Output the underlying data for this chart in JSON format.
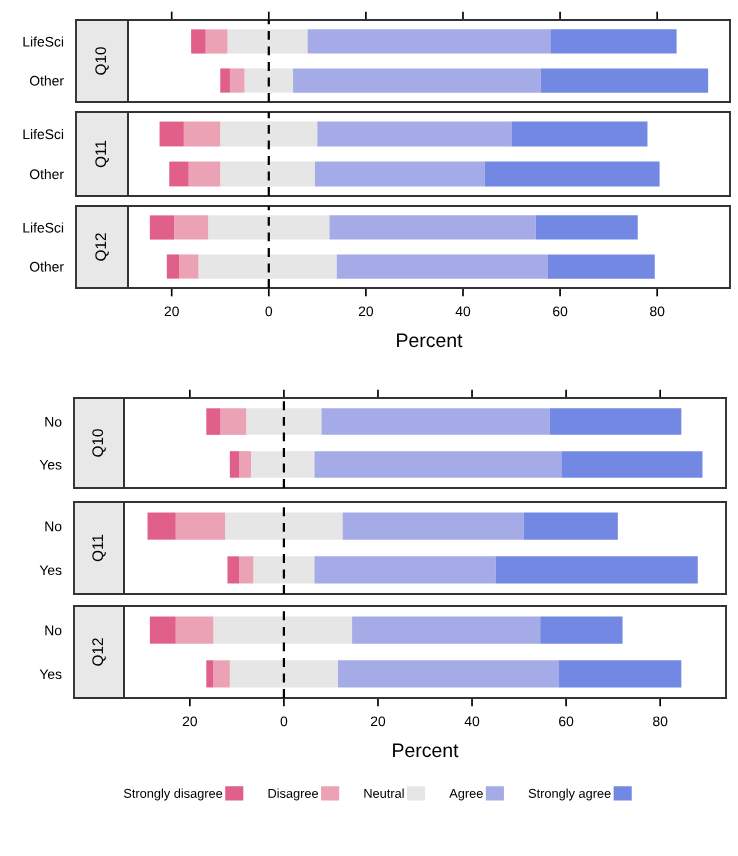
{
  "chart_data": [
    {
      "type": "bar",
      "title": "Q10",
      "orientation": "horizontal",
      "stacked": true,
      "categories": [
        "LifeSci",
        "Other"
      ],
      "xlim": [
        -29,
        95
      ],
      "xticks": [
        {
          "value": -20,
          "label": null
        },
        {
          "value": 0,
          "label": null
        },
        {
          "value": 20,
          "label": null
        },
        {
          "value": 40,
          "label": null
        },
        {
          "value": 60,
          "label": null
        },
        {
          "value": 80,
          "label": null
        }
      ],
      "tick_labels": "y",
      "ref_lines": [
        {
          "axis": "x",
          "value": 0,
          "line_style": "dashed",
          "color": "#000000"
        }
      ],
      "series": [
        {
          "color": "#e6e6e6",
          "values": [
            -8.5,
            -5
          ]
        },
        {
          "color": "#e6e6e6",
          "values": [
            8,
            5
          ]
        },
        {
          "color": "#eba2b4",
          "values": [
            -4.5,
            -3
          ]
        },
        {
          "color": "#a4abe6",
          "values": [
            50,
            51
          ]
        },
        {
          "color": "#e0608a",
          "values": [
            -3,
            -2
          ]
        },
        {
          "color": "#7288e2",
          "values": [
            26,
            34.5
          ]
        }
      ]
    },
    {
      "type": "bar",
      "title": "Q11",
      "orientation": "horizontal",
      "stacked": true,
      "categories": [
        "LifeSci",
        "Other"
      ],
      "xlim": [
        -29,
        95
      ],
      "tick_labels": "y",
      "ref_lines": [
        {
          "axis": "x",
          "value": 0,
          "line_style": "dashed",
          "color": "#000000"
        }
      ],
      "series": [
        {
          "color": "#e6e6e6",
          "values": [
            -10,
            -10
          ]
        },
        {
          "color": "#e6e6e6",
          "values": [
            10,
            9.5
          ]
        },
        {
          "color": "#eba2b4",
          "values": [
            -7.5,
            -6.5
          ]
        },
        {
          "color": "#a4abe6",
          "values": [
            40,
            35
          ]
        },
        {
          "color": "#e0608a",
          "values": [
            -5,
            -4
          ]
        },
        {
          "color": "#7288e2",
          "values": [
            28,
            36
          ]
        }
      ]
    },
    {
      "type": "bar",
      "title": "Q12",
      "xlabel": "Percent",
      "orientation": "horizontal",
      "stacked": true,
      "categories": [
        "LifeSci",
        "Other"
      ],
      "xlim": [
        -29,
        95
      ],
      "xticks": [
        {
          "value": -20,
          "label": "20"
        },
        0,
        20,
        40,
        60,
        80
      ],
      "ref_lines": [
        {
          "axis": "x",
          "value": 0,
          "line_style": "dashed",
          "color": "#000000"
        }
      ],
      "series": [
        {
          "color": "#e6e6e6",
          "values": [
            -12.5,
            -14.5
          ]
        },
        {
          "color": "#e6e6e6",
          "values": [
            12.5,
            14
          ]
        },
        {
          "color": "#eba2b4",
          "values": [
            -7,
            -4
          ]
        },
        {
          "color": "#a4abe6",
          "values": [
            42.5,
            43.5
          ]
        },
        {
          "color": "#e0608a",
          "values": [
            -5,
            -2.5
          ]
        },
        {
          "color": "#7288e2",
          "values": [
            21,
            22
          ]
        }
      ]
    },
    {
      "type": "bar",
      "title": "Q10",
      "orientation": "horizontal",
      "stacked": true,
      "categories": [
        "No",
        "Yes"
      ],
      "xlim": [
        -34,
        94
      ],
      "xticks": [
        {
          "value": -20,
          "label": null
        },
        {
          "value": 0,
          "label": null
        },
        {
          "value": 20,
          "label": null
        },
        {
          "value": 40,
          "label": null
        },
        {
          "value": 60,
          "label": null
        },
        {
          "value": 80,
          "label": null
        }
      ],
      "tick_labels": "y",
      "ref_lines": [
        {
          "axis": "x",
          "value": 0,
          "line_style": "dashed",
          "color": "#000000"
        }
      ],
      "series": [
        {
          "color": "#e6e6e6",
          "values": [
            -8,
            -7
          ]
        },
        {
          "color": "#e6e6e6",
          "values": [
            8,
            6.5
          ]
        },
        {
          "color": "#eba2b4",
          "values": [
            -5.5,
            -2.5
          ]
        },
        {
          "color": "#a4abe6",
          "values": [
            48.5,
            52.5
          ]
        },
        {
          "color": "#e0608a",
          "values": [
            -3,
            -2
          ]
        },
        {
          "color": "#7288e2",
          "values": [
            28,
            30
          ]
        }
      ]
    },
    {
      "type": "bar",
      "title": "Q11",
      "orientation": "horizontal",
      "stacked": true,
      "categories": [
        "No",
        "Yes"
      ],
      "xlim": [
        -34,
        94
      ],
      "tick_labels": "y",
      "ref_lines": [
        {
          "axis": "x",
          "value": 0,
          "line_style": "dashed",
          "color": "#000000"
        }
      ],
      "series": [
        {
          "color": "#e6e6e6",
          "values": [
            -12.5,
            -6.5
          ]
        },
        {
          "color": "#e6e6e6",
          "values": [
            12.5,
            6.5
          ]
        },
        {
          "color": "#eba2b4",
          "values": [
            -10.5,
            -3
          ]
        },
        {
          "color": "#a4abe6",
          "values": [
            38.5,
            38.5
          ]
        },
        {
          "color": "#e0608a",
          "values": [
            -6,
            -2.5
          ]
        },
        {
          "color": "#7288e2",
          "values": [
            20,
            43
          ]
        }
      ]
    },
    {
      "type": "bar",
      "title": "Q12",
      "xlabel": "Percent",
      "orientation": "horizontal",
      "stacked": true,
      "categories": [
        "No",
        "Yes"
      ],
      "xlim": [
        -34,
        94
      ],
      "xticks": [
        {
          "value": -20,
          "label": "20"
        },
        0,
        20,
        40,
        60,
        80
      ],
      "legend": "bottom",
      "ref_lines": [
        {
          "axis": "x",
          "value": 0,
          "line_style": "dashed",
          "color": "#000000"
        }
      ],
      "series": [
        {
          "name": "Neutral",
          "color": "#e6e6e6",
          "values": [
            -15,
            -11.5
          ]
        },
        {
          "color": "#e6e6e6",
          "values": [
            14.5,
            11.5
          ]
        },
        {
          "name": "Disagree",
          "color": "#eba2b4",
          "values": [
            -8,
            -3.5
          ]
        },
        {
          "name": "Agree",
          "color": "#a4abe6",
          "values": [
            40,
            47
          ]
        },
        {
          "name": "Strongly disagree",
          "color": "#e0608a",
          "values": [
            -5.5,
            -1.5
          ]
        },
        {
          "name": "Strongly agree",
          "color": "#7288e2",
          "values": [
            17.5,
            26
          ]
        }
      ]
    }
  ]
}
